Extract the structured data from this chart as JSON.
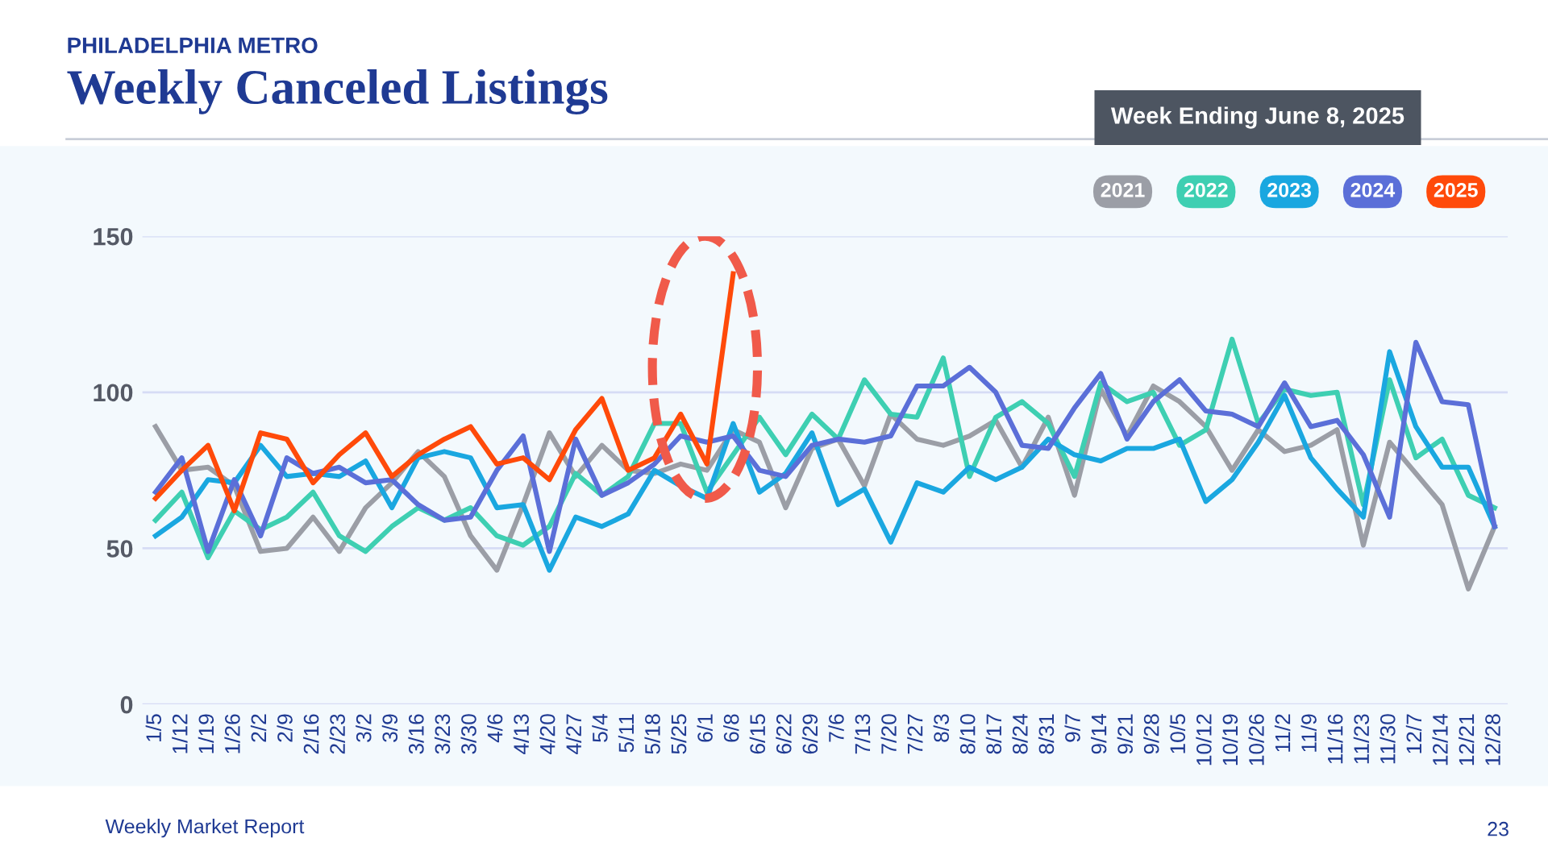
{
  "chart_data": {
    "type": "line",
    "subtitle": "PHILADELPHIA METRO",
    "title": "Weekly Canceled Listings",
    "annotations": [
      "Week Ending June 8, 2025",
      "Weekly Market Report",
      "23"
    ],
    "categories": [
      "1/5",
      "1/12",
      "1/19",
      "1/26",
      "2/2",
      "2/9",
      "2/16",
      "2/23",
      "3/2",
      "3/9",
      "3/16",
      "3/23",
      "3/30",
      "4/6",
      "4/13",
      "4/20",
      "4/27",
      "5/4",
      "5/11",
      "5/18",
      "5/25",
      "6/1",
      "6/8",
      "6/15",
      "6/22",
      "6/29",
      "7/6",
      "7/13",
      "7/20",
      "7/27",
      "8/3",
      "8/10",
      "8/17",
      "8/24",
      "8/31",
      "9/7",
      "9/14",
      "9/21",
      "9/28",
      "10/5",
      "10/12",
      "10/19",
      "10/26",
      "11/2",
      "11/9",
      "11/16",
      "11/23",
      "11/30",
      "12/7",
      "12/14",
      "12/21",
      "12/28"
    ],
    "series": [
      {
        "name": "2021",
        "color": "#9b9ea6",
        "values": [
          89,
          75,
          76,
          70,
          49,
          50,
          60,
          49,
          63,
          71,
          81,
          73,
          54,
          43,
          64,
          87,
          73,
          83,
          75,
          74,
          77,
          75,
          88,
          84,
          63,
          82,
          85,
          70,
          93,
          85,
          83,
          86,
          91,
          76,
          92,
          67,
          101,
          86,
          102,
          97,
          89,
          75,
          88,
          81,
          83,
          88,
          51,
          84,
          74,
          64,
          37,
          57
        ]
      },
      {
        "name": "2022",
        "color": "#3ecfb2",
        "values": [
          59,
          68,
          47,
          62,
          56,
          60,
          68,
          54,
          49,
          57,
          63,
          59,
          63,
          54,
          51,
          57,
          74,
          67,
          73,
          90,
          90,
          68,
          80,
          92,
          80,
          93,
          85,
          104,
          93,
          92,
          111,
          73,
          92,
          97,
          90,
          73,
          103,
          97,
          100,
          83,
          88,
          117,
          90,
          101,
          99,
          100,
          64,
          104,
          79,
          85,
          67,
          63
        ]
      },
      {
        "name": "2023",
        "color": "#1aa7e0",
        "values": [
          54,
          60,
          72,
          71,
          83,
          73,
          74,
          73,
          78,
          63,
          79,
          81,
          79,
          63,
          64,
          43,
          60,
          57,
          61,
          75,
          70,
          66,
          90,
          68,
          74,
          87,
          64,
          69,
          52,
          71,
          68,
          76,
          72,
          76,
          85,
          80,
          78,
          82,
          82,
          85,
          65,
          72,
          84,
          99,
          79,
          69,
          60,
          113,
          89,
          76,
          76,
          57
        ]
      },
      {
        "name": "2024",
        "color": "#5b6fd8",
        "values": [
          68,
          79,
          49,
          72,
          54,
          79,
          74,
          76,
          71,
          72,
          64,
          59,
          60,
          75,
          86,
          49,
          85,
          67,
          71,
          77,
          86,
          84,
          86,
          75,
          73,
          83,
          85,
          84,
          86,
          102,
          102,
          108,
          100,
          83,
          82,
          95,
          106,
          85,
          97,
          104,
          94,
          93,
          89,
          103,
          89,
          91,
          80,
          60,
          116,
          97,
          96,
          57
        ]
      },
      {
        "name": "2025",
        "color": "#ff4a0a",
        "values": [
          66,
          75,
          83,
          62,
          87,
          85,
          71,
          80,
          87,
          73,
          80,
          85,
          89,
          77,
          79,
          72,
          88,
          98,
          75,
          79,
          93,
          77,
          138,
          null,
          null,
          null,
          null,
          null,
          null,
          null,
          null,
          null,
          null,
          null,
          null,
          null,
          null,
          null,
          null,
          null,
          null,
          null,
          null,
          null,
          null,
          null,
          null,
          null,
          null,
          null,
          null,
          null
        ]
      }
    ],
    "ylim": [
      0,
      150
    ],
    "yticks": [
      0,
      50,
      100,
      150
    ],
    "grid": "y",
    "legend": "top right",
    "marker": "none",
    "line_style": "solid"
  }
}
